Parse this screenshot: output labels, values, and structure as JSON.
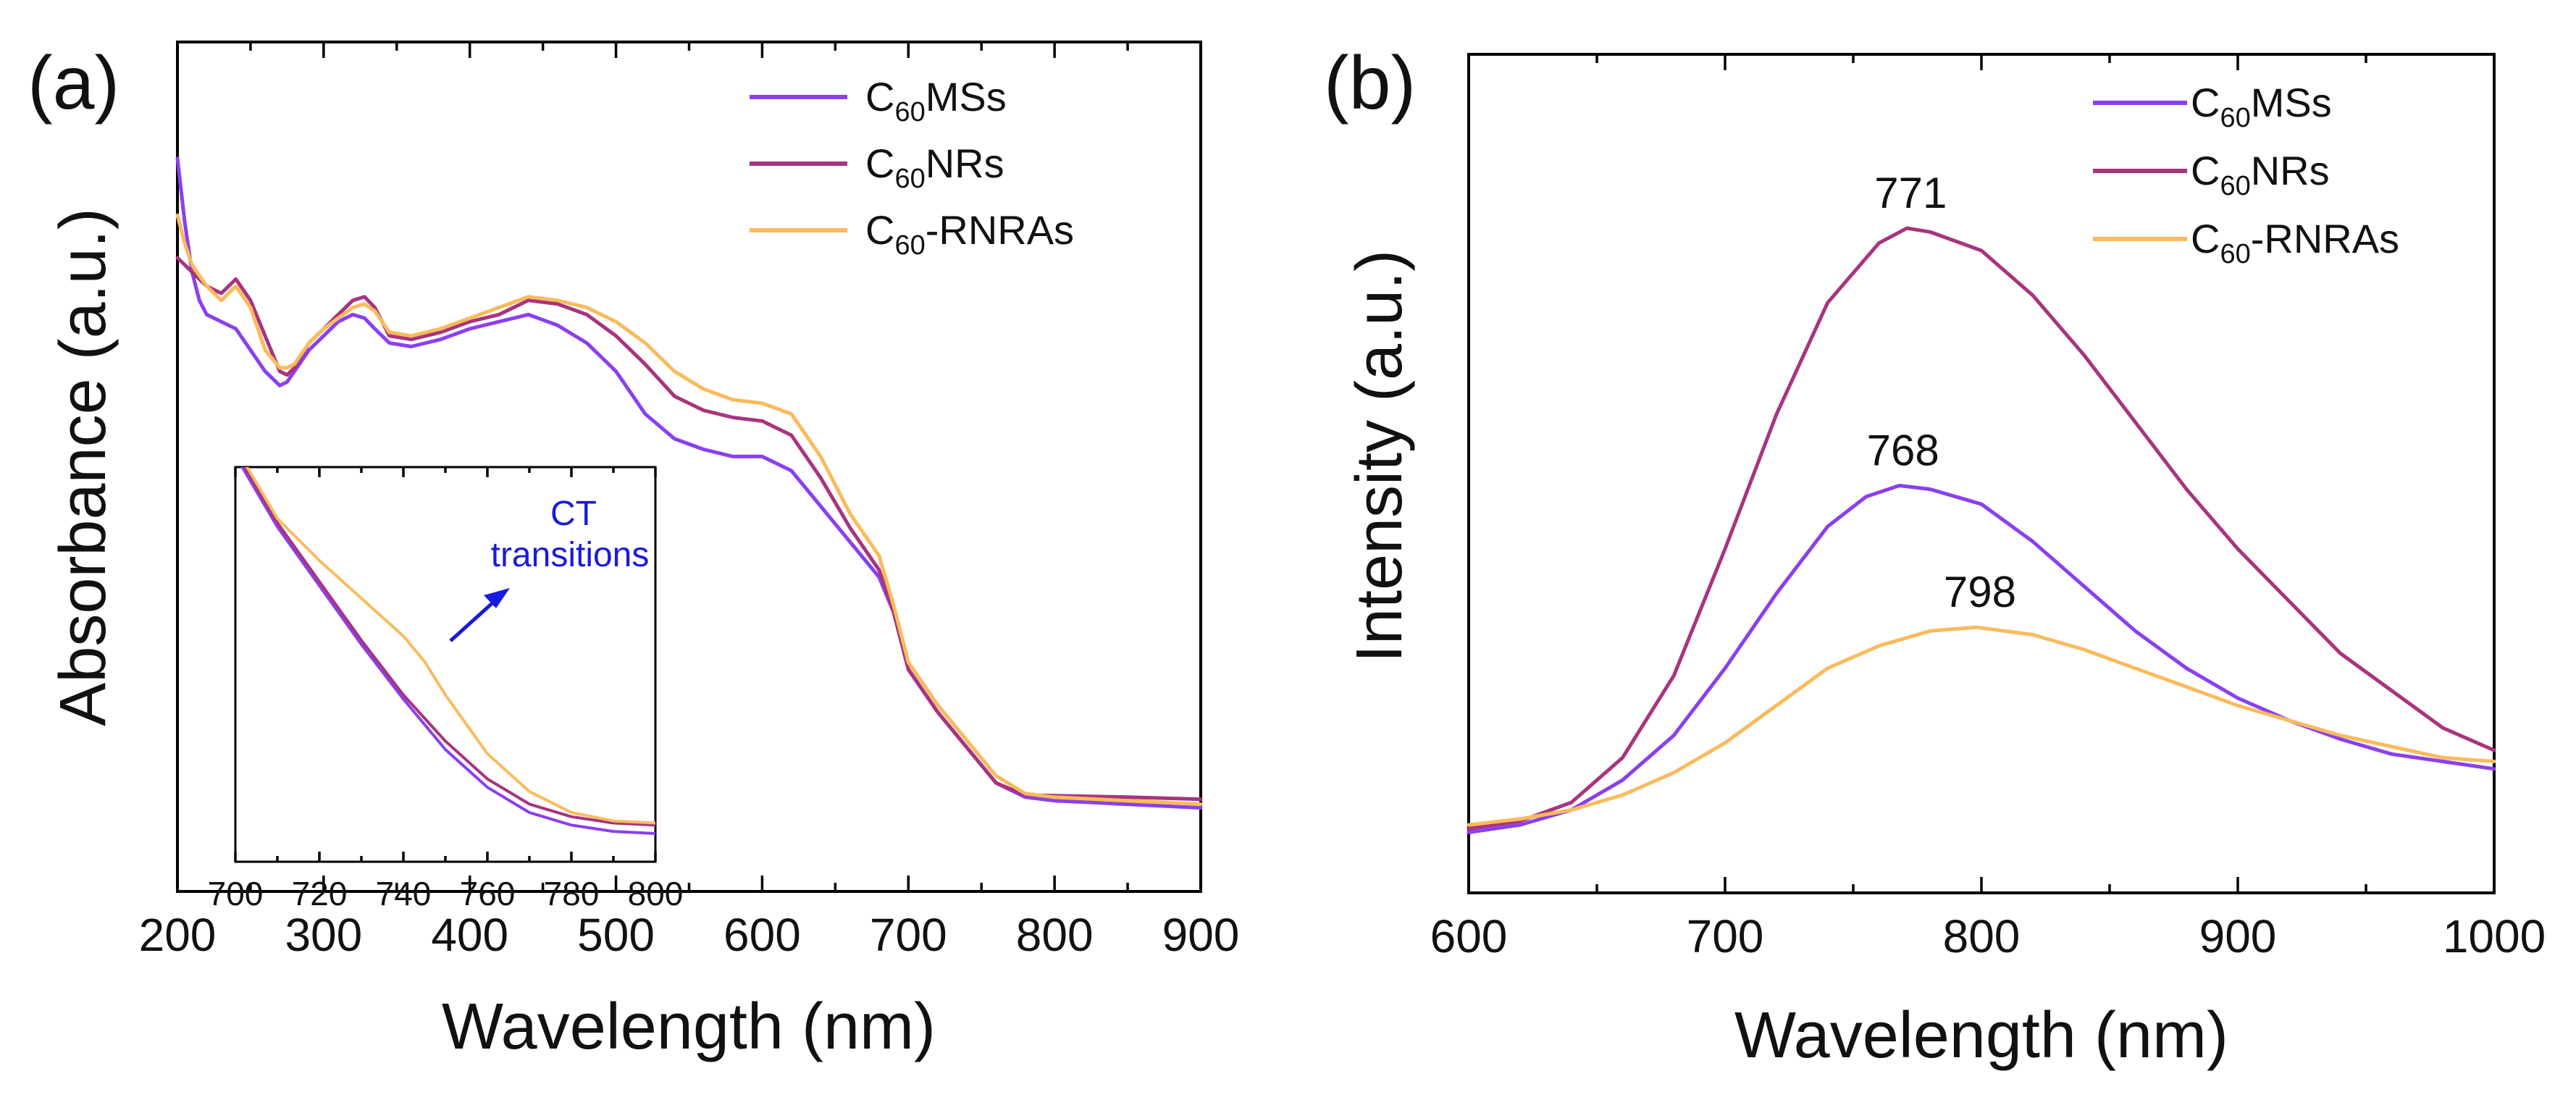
{
  "chart_data": [
    {
      "panel_label": "(a)",
      "type": "line",
      "xlabel": "Wavelength (nm)",
      "ylabel": "Absorbance (a.u.)",
      "xlim": [
        200,
        900
      ],
      "ylim": [
        0,
        1
      ],
      "xticks": [
        "200",
        "300",
        "400",
        "500",
        "600",
        "700",
        "800",
        "900"
      ],
      "legend_position": "top-right",
      "colors": {
        "C60MSs": "#8a3ff0",
        "C60NRs": "#a8347e",
        "C60-RNRAs": "#f9bb5c"
      },
      "series": [
        {
          "key": "C60MSs",
          "name_main": "C",
          "name_sub": "60",
          "name_rest": "MSs",
          "x": [
            200,
            205,
            210,
            215,
            220,
            230,
            240,
            250,
            260,
            270,
            275,
            280,
            290,
            300,
            310,
            320,
            328,
            335,
            345,
            360,
            380,
            400,
            420,
            440,
            460,
            480,
            500,
            520,
            540,
            560,
            580,
            600,
            620,
            640,
            660,
            680,
            690,
            700,
            720,
            740,
            760,
            780,
            800,
            850,
            900
          ],
          "values": [
            0.94,
            0.85,
            0.78,
            0.74,
            0.72,
            0.71,
            0.7,
            0.67,
            0.64,
            0.62,
            0.625,
            0.64,
            0.67,
            0.69,
            0.71,
            0.72,
            0.715,
            0.7,
            0.68,
            0.675,
            0.685,
            0.7,
            0.71,
            0.72,
            0.705,
            0.68,
            0.64,
            0.58,
            0.545,
            0.53,
            0.52,
            0.52,
            0.5,
            0.45,
            0.4,
            0.35,
            0.3,
            0.22,
            0.16,
            0.11,
            0.06,
            0.04,
            0.035,
            0.03,
            0.025
          ]
        },
        {
          "key": "C60NRs",
          "name_main": "C",
          "name_sub": "60",
          "name_rest": "NRs",
          "x": [
            200,
            210,
            220,
            230,
            240,
            250,
            260,
            270,
            275,
            280,
            290,
            300,
            310,
            320,
            328,
            335,
            345,
            360,
            380,
            400,
            420,
            440,
            460,
            480,
            500,
            520,
            540,
            560,
            580,
            600,
            620,
            640,
            660,
            680,
            690,
            700,
            720,
            740,
            760,
            780,
            800,
            850,
            900
          ],
          "values": [
            0.8,
            0.78,
            0.76,
            0.75,
            0.77,
            0.74,
            0.69,
            0.64,
            0.635,
            0.645,
            0.68,
            0.7,
            0.72,
            0.74,
            0.745,
            0.73,
            0.69,
            0.685,
            0.695,
            0.71,
            0.72,
            0.74,
            0.735,
            0.72,
            0.69,
            0.65,
            0.605,
            0.585,
            0.575,
            0.57,
            0.55,
            0.49,
            0.42,
            0.36,
            0.3,
            0.22,
            0.16,
            0.11,
            0.06,
            0.043,
            0.042,
            0.04,
            0.037
          ]
        },
        {
          "key": "C60-RNRAs",
          "name_main": "C",
          "name_sub": "60",
          "name_rest": "-RNRAs",
          "x": [
            200,
            205,
            210,
            220,
            230,
            240,
            250,
            260,
            270,
            275,
            280,
            290,
            300,
            310,
            320,
            328,
            335,
            345,
            360,
            380,
            400,
            420,
            440,
            460,
            480,
            500,
            520,
            540,
            560,
            580,
            600,
            620,
            640,
            660,
            680,
            690,
            700,
            720,
            740,
            760,
            780,
            800,
            850,
            900
          ],
          "values": [
            0.86,
            0.82,
            0.79,
            0.76,
            0.74,
            0.76,
            0.73,
            0.67,
            0.645,
            0.645,
            0.65,
            0.68,
            0.7,
            0.715,
            0.73,
            0.735,
            0.725,
            0.695,
            0.69,
            0.7,
            0.715,
            0.73,
            0.745,
            0.74,
            0.73,
            0.71,
            0.68,
            0.64,
            0.615,
            0.6,
            0.595,
            0.58,
            0.52,
            0.44,
            0.38,
            0.31,
            0.23,
            0.17,
            0.12,
            0.07,
            0.045,
            0.04,
            0.035,
            0.03
          ]
        }
      ],
      "inset": {
        "xlim": [
          700,
          800
        ],
        "xticks": [
          "700",
          "720",
          "740",
          "760",
          "780",
          "800"
        ],
        "annotation_line1": "CT",
        "annotation_line2": "transitions",
        "annotation_color": "#1a1adc",
        "series": [
          {
            "key": "C60MSs",
            "x": [
              700,
              710,
              720,
              730,
              740,
              750,
              760,
              770,
              780,
              790,
              800
            ],
            "values": [
              0.95,
              0.78,
              0.64,
              0.5,
              0.37,
              0.25,
              0.16,
              0.1,
              0.07,
              0.055,
              0.05
            ]
          },
          {
            "key": "C60NRs",
            "x": [
              700,
              710,
              720,
              730,
              740,
              750,
              760,
              770,
              780,
              790,
              800
            ],
            "values": [
              0.96,
              0.79,
              0.65,
              0.51,
              0.38,
              0.27,
              0.18,
              0.12,
              0.09,
              0.075,
              0.07
            ]
          },
          {
            "key": "C60-RNRAs",
            "x": [
              700,
              710,
              720,
              730,
              740,
              745,
              750,
              760,
              770,
              780,
              790,
              800
            ],
            "values": [
              0.97,
              0.8,
              0.7,
              0.61,
              0.52,
              0.46,
              0.38,
              0.24,
              0.15,
              0.1,
              0.08,
              0.075
            ]
          }
        ]
      }
    },
    {
      "panel_label": "(b)",
      "type": "line",
      "xlabel": "Wavelength (nm)",
      "ylabel": "Intensity (a.u.)",
      "xlim": [
        600,
        1000
      ],
      "ylim": [
        0,
        1
      ],
      "xticks": [
        "600",
        "700",
        "800",
        "900",
        "1000"
      ],
      "legend_position": "top-right",
      "colors": {
        "C60MSs": "#8a3ff0",
        "C60NRs": "#a8347e",
        "C60-RNRAs": "#f9bb5c"
      },
      "series": [
        {
          "key": "C60MSs",
          "name_main": "C",
          "name_sub": "60",
          "name_rest": "MSs",
          "x": [
            600,
            620,
            640,
            660,
            680,
            700,
            720,
            740,
            755,
            768,
            780,
            800,
            820,
            840,
            860,
            880,
            900,
            920,
            940,
            960,
            980,
            1000
          ],
          "values": [
            0.02,
            0.03,
            0.05,
            0.09,
            0.15,
            0.24,
            0.34,
            0.43,
            0.47,
            0.485,
            0.48,
            0.46,
            0.41,
            0.35,
            0.29,
            0.24,
            0.2,
            0.17,
            0.145,
            0.125,
            0.115,
            0.105
          ]
        },
        {
          "key": "C60NRs",
          "name_main": "C",
          "name_sub": "60",
          "name_rest": "NRs",
          "x": [
            600,
            620,
            640,
            660,
            680,
            700,
            720,
            740,
            760,
            771,
            780,
            800,
            820,
            840,
            860,
            880,
            900,
            920,
            940,
            960,
            980,
            1000
          ],
          "values": [
            0.025,
            0.035,
            0.06,
            0.12,
            0.23,
            0.4,
            0.58,
            0.73,
            0.81,
            0.83,
            0.825,
            0.8,
            0.74,
            0.66,
            0.57,
            0.48,
            0.4,
            0.33,
            0.26,
            0.21,
            0.16,
            0.13
          ]
        },
        {
          "key": "C60-RNRAs",
          "name_main": "C",
          "name_sub": "60",
          "name_rest": "-RNRAs",
          "x": [
            600,
            620,
            640,
            660,
            680,
            700,
            720,
            740,
            760,
            780,
            798,
            820,
            840,
            860,
            880,
            900,
            920,
            940,
            960,
            980,
            1000
          ],
          "values": [
            0.03,
            0.038,
            0.05,
            0.07,
            0.1,
            0.14,
            0.19,
            0.24,
            0.27,
            0.29,
            0.295,
            0.285,
            0.265,
            0.24,
            0.215,
            0.19,
            0.17,
            0.15,
            0.135,
            0.12,
            0.115
          ]
        }
      ],
      "peak_labels": [
        {
          "text": "771",
          "x": 771,
          "y": 0.83
        },
        {
          "text": "768",
          "x": 768,
          "y": 0.485
        },
        {
          "text": "798",
          "x": 798,
          "y": 0.295
        }
      ]
    }
  ]
}
